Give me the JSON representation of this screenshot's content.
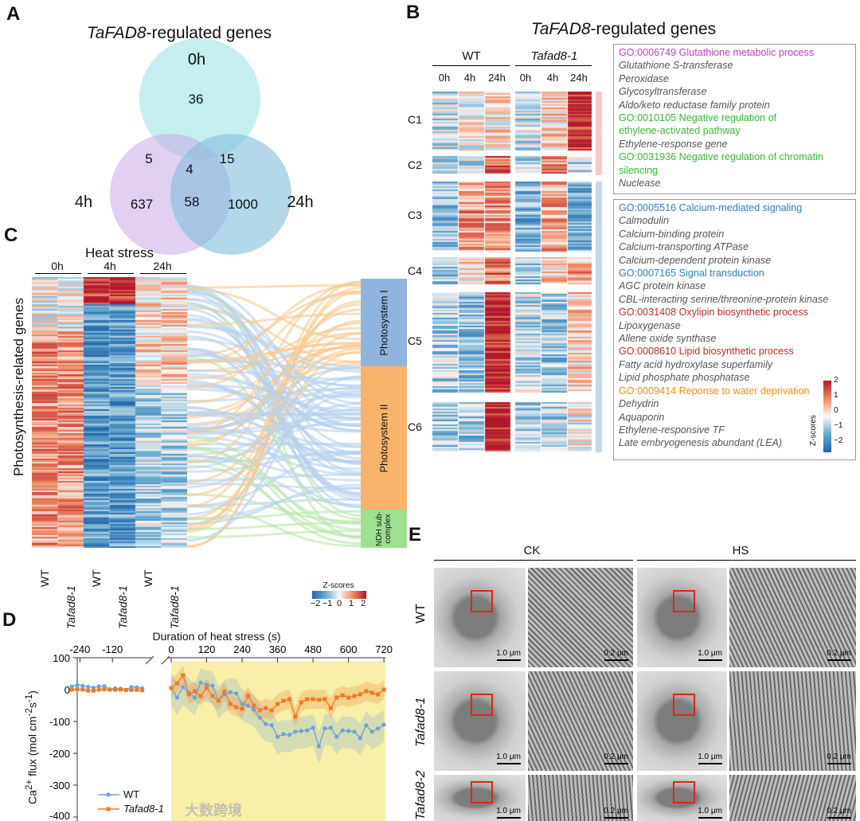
{
  "panelA": {
    "label": "A",
    "title_italic": "TaFAD8",
    "title_rest": "-regulated genes",
    "sets": {
      "0h": "0h",
      "4h": "4h",
      "24h": "24h"
    },
    "counts": {
      "only0h": "36",
      "0h_4h": "5",
      "0h_24h": "15",
      "all": "4",
      "only4h": "637",
      "4h_24h": "58",
      "only24h": "1000"
    }
  },
  "panelB": {
    "label": "B",
    "title_italic": "TaFAD8",
    "title_rest": "-regulated genes",
    "groups": [
      "WT",
      "Tafad8-1"
    ],
    "times": [
      "0h",
      "4h",
      "24h",
      "0h",
      "4h",
      "24h"
    ],
    "clusters": [
      "C1",
      "C2",
      "C3",
      "C4",
      "C5",
      "C6"
    ],
    "box1": [
      {
        "t": "GO:0006749 Glutathione metabolic process",
        "c": "#c03fc0",
        "go": true
      },
      {
        "t": "Glutathione S-transferase"
      },
      {
        "t": "Peroxidase"
      },
      {
        "t": "Glycosyltransferase"
      },
      {
        "t": "Aldo/keto reductase family protein"
      },
      {
        "t": "GO:0010105 Negative regulation of",
        "c": "#3bb53b",
        "go": true
      },
      {
        "t": "ethylene-activated pathway",
        "c": "#3bb53b",
        "go": true
      },
      {
        "t": "Ethylene-response gene"
      },
      {
        "t": "GO:0031936 Negative regulation of chromatin",
        "c": "#3bb53b",
        "go": true
      },
      {
        "t": " silencing",
        "c": "#3bb53b",
        "go": true
      },
      {
        "t": "Nuclease"
      }
    ],
    "box2": [
      {
        "t": "GO:0005516 Calcium-mediated signaling",
        "c": "#2f7ec0",
        "go": true
      },
      {
        "t": "Calmodulin"
      },
      {
        "t": "Calcium-binding protein"
      },
      {
        "t": "Calcium-transporting ATPase"
      },
      {
        "t": "Calcium-dependent protein kinase"
      },
      {
        "t": "GO:0007165 Signal transduction",
        "c": "#2f7ec0",
        "go": true
      },
      {
        "t": "AGC protein kinase"
      },
      {
        "t": "CBL-interacting serine/threonine-protein kinase"
      },
      {
        "t": "GO:0031408 Oxylipin biosynthetic process",
        "c": "#c62828",
        "go": true
      },
      {
        "t": "Lipoxygenase"
      },
      {
        "t": "Allene oxide synthase"
      },
      {
        "t": "GO:0008610 Lipid biosynthetic process",
        "c": "#c62828",
        "go": true
      },
      {
        "t": "Fatty acid hydroxylase superfamily"
      },
      {
        "t": "Lipid phosphate phosphatase"
      },
      {
        "t": "GO:0009414 Reponse to water deprivation",
        "c": "#f08c1e",
        "go": true
      },
      {
        "t": "Dehydrin"
      },
      {
        "t": "Aquaporin"
      },
      {
        "t": "Ethylene-responsive TF"
      },
      {
        "t": "Late embryogenesis abundant (LEA)"
      }
    ],
    "legend": {
      "title": "Z-scores",
      "ticks": [
        "2",
        "1",
        "0",
        "−1",
        "−2"
      ]
    }
  },
  "panelC": {
    "label": "C",
    "header": "Heat stress",
    "times": [
      "0h",
      "4h",
      "24h"
    ],
    "ylabel": "Photosynthesis-related genes",
    "samples": [
      "WT",
      "Tafad8-1",
      "WT",
      "Tafad8-1",
      "WT",
      "Tafad8-1"
    ],
    "categories": [
      {
        "name": "Photosystem I",
        "color": "#8fb4de"
      },
      {
        "name": "Photosystem II",
        "color": "#f9b36a"
      },
      {
        "name": "NDH sub-complex",
        "color": "#9ee08e"
      }
    ],
    "legend": {
      "title": "Z-scores",
      "ticks": [
        "−2",
        "−1",
        "0",
        "1",
        "2"
      ]
    }
  },
  "chart_data": {
    "type": "line",
    "title": "",
    "xlabel": "Duration of heat stress (s)",
    "ylabel": "Ca2+ flux (mol cm-2s-1)",
    "label": "D",
    "xticks_pre": [
      "-240",
      "-120"
    ],
    "xticks": [
      "0",
      "120",
      "240",
      "360",
      "480",
      "600",
      "720"
    ],
    "yticks": [
      "100",
      "0",
      "-100",
      "-200",
      "-300",
      "-400"
    ],
    "ylim": [
      -400,
      100
    ],
    "legend": [
      "WT",
      "Tafad8-1"
    ],
    "legend_placement": "bottom-left",
    "shaded_region": "0-720 s heat stress",
    "x_pre": [
      -270,
      -250,
      -230,
      -210,
      -190,
      -170,
      -150,
      -130,
      -110,
      -90,
      -70,
      -50,
      -30,
      -10
    ],
    "series_pre": [
      {
        "name": "WT",
        "values": [
          10,
          14,
          12,
          9,
          6,
          10,
          11,
          1,
          4,
          3,
          -1,
          8,
          7,
          4
        ]
      },
      {
        "name": "Tafad8-1",
        "values": [
          0,
          1,
          0,
          -3,
          -3,
          0,
          1,
          0,
          0,
          0,
          -1,
          -1,
          -1,
          -2
        ]
      }
    ],
    "x": [
      0,
      20,
      40,
      60,
      80,
      100,
      120,
      140,
      160,
      180,
      200,
      220,
      240,
      260,
      280,
      300,
      320,
      340,
      360,
      380,
      400,
      420,
      440,
      460,
      480,
      500,
      520,
      540,
      560,
      580,
      600,
      620,
      640,
      660,
      680,
      700,
      720
    ],
    "series": [
      {
        "name": "WT",
        "color": "#6fa3d8",
        "values": [
          5,
          -25,
          8,
          -10,
          -25,
          22,
          15,
          12,
          -35,
          -15,
          -8,
          -12,
          -45,
          -50,
          -62,
          -88,
          -108,
          -112,
          -148,
          -140,
          -142,
          -132,
          -130,
          -128,
          -120,
          -178,
          -122,
          -120,
          -148,
          -128,
          -130,
          -132,
          -152,
          -112,
          -132,
          -122,
          -110
        ]
      },
      {
        "name": "Tafad8-1",
        "color": "#f07a2a",
        "values": [
          5,
          20,
          45,
          -15,
          -5,
          -20,
          5,
          -20,
          -35,
          -5,
          -45,
          -55,
          -60,
          -20,
          -50,
          -65,
          -58,
          -65,
          -45,
          -35,
          -30,
          -85,
          -40,
          -30,
          -30,
          -32,
          -30,
          -58,
          -25,
          -18,
          -25,
          -20,
          -15,
          -5,
          -10,
          -15,
          0
        ]
      }
    ]
  },
  "panelE": {
    "label": "E",
    "conditions": [
      "CK",
      "HS"
    ],
    "rows": [
      "WT",
      "Tafad8-1",
      "Tafad8-2"
    ],
    "scale_low": "1.0 μm",
    "scale_high": "0.2 μm"
  },
  "watermark": "大数跨境"
}
